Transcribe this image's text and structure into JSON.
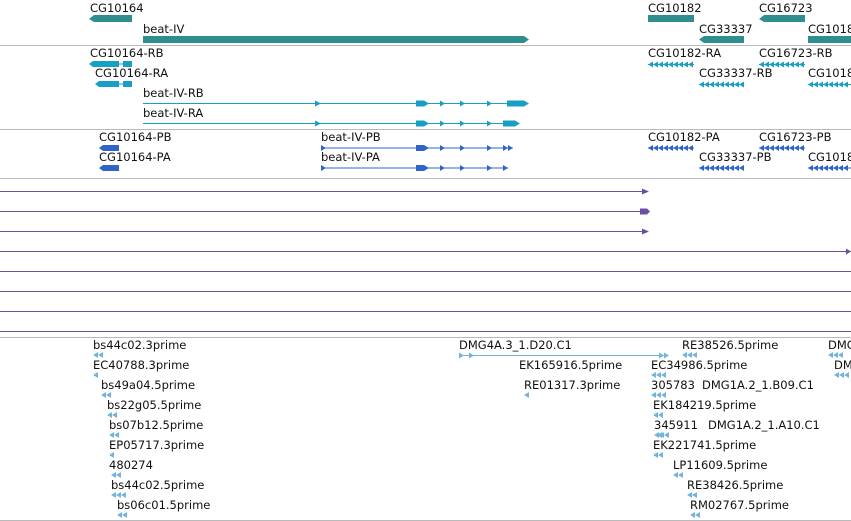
{
  "colors": {
    "gene": "#2f8f8f",
    "transcript": "#1a9fc4",
    "protein": "#2f64c8",
    "alignment": "#6a4fa3",
    "est": "#74b4dc",
    "separator": "#b9b9b9"
  },
  "tracks": {
    "genes": [
      {
        "name": "CG10164"
      },
      {
        "name": "beat-IV"
      },
      {
        "name": "CG10182"
      },
      {
        "name": "CG33337"
      },
      {
        "name": "CG16723"
      },
      {
        "name": "CG1018"
      }
    ],
    "transcripts": [
      {
        "name": "CG10164-RB"
      },
      {
        "name": "CG10164-RA"
      },
      {
        "name": "beat-IV-RB"
      },
      {
        "name": "beat-IV-RA"
      },
      {
        "name": "CG10182-RA"
      },
      {
        "name": "CG16723-RB"
      },
      {
        "name": "CG33337-RB"
      },
      {
        "name": "CG1018"
      }
    ],
    "proteins": [
      {
        "name": "CG10164-PB"
      },
      {
        "name": "CG10164-PA"
      },
      {
        "name": "beat-IV-PB"
      },
      {
        "name": "beat-IV-PA"
      },
      {
        "name": "CG10182-PA"
      },
      {
        "name": "CG16723-PB"
      },
      {
        "name": "CG33337-PB"
      },
      {
        "name": "CG1018"
      }
    ],
    "ests": [
      {
        "name": "bs44c02.3prime"
      },
      {
        "name": "EC40788.3prime"
      },
      {
        "name": "bs49a04.5prime"
      },
      {
        "name": "bs22g05.5prime"
      },
      {
        "name": "bs07b12.5prime"
      },
      {
        "name": "EP05717.3prime"
      },
      {
        "name": "480274"
      },
      {
        "name": "bs44c02.5prime"
      },
      {
        "name": "bs06c01.5prime"
      },
      {
        "name": "DMG4A.3_1.D20.C1"
      },
      {
        "name": "EK165916.5prime"
      },
      {
        "name": "RE01317.3prime"
      },
      {
        "name": "RE38526.5prime"
      },
      {
        "name": "EC34986.5prime"
      },
      {
        "name": "305783"
      },
      {
        "name": "DMG1A.2_1.B09.C1"
      },
      {
        "name": "EK184219.5prime"
      },
      {
        "name": "345911"
      },
      {
        "name": "DMG1A.2_1.A10.C1"
      },
      {
        "name": "EK221741.5prime"
      },
      {
        "name": "LP11609.5prime"
      },
      {
        "name": "RE38426.5prime"
      },
      {
        "name": "RM02767.5prime"
      },
      {
        "name": "DMG"
      },
      {
        "name": "DM"
      }
    ]
  }
}
